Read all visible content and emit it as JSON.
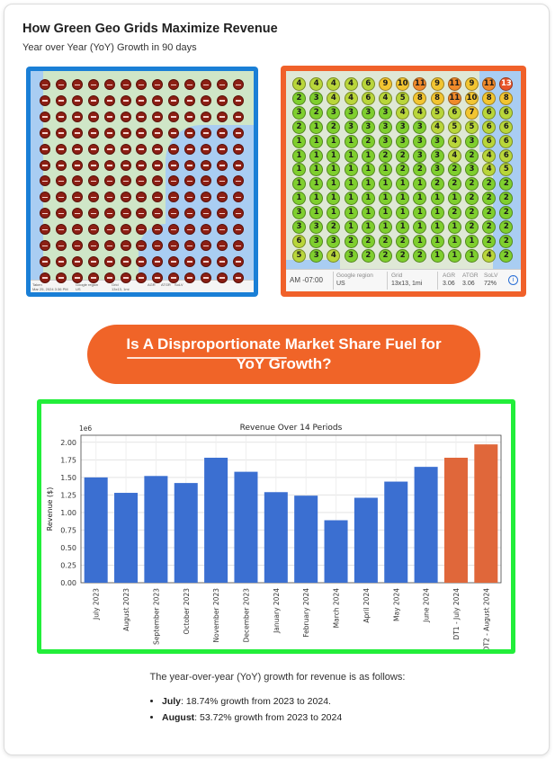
{
  "header": {
    "title": "How Green Geo Grids Maximize Revenue",
    "subtitle": "Year over Year (YoY) Growth in 90 days"
  },
  "grid_left": {
    "marker_label": "20+",
    "footer": [
      "Taken",
      "Mar 25, 2024 3:36 PM",
      "Google region",
      "US",
      "Grid",
      "13x13, 1mi",
      "AGR",
      "ATGR",
      "SoLV"
    ]
  },
  "grid_right": {
    "ranks": [
      [
        4,
        4,
        4,
        4,
        6,
        9,
        10,
        11,
        9,
        11,
        9,
        11,
        13
      ],
      [
        2,
        3,
        4,
        4,
        6,
        4,
        5,
        8,
        8,
        11,
        10,
        8,
        8
      ],
      [
        3,
        2,
        3,
        3,
        3,
        3,
        4,
        4,
        5,
        6,
        7,
        6,
        6
      ],
      [
        2,
        1,
        2,
        3,
        3,
        3,
        3,
        3,
        4,
        5,
        5,
        6,
        6
      ],
      [
        1,
        1,
        1,
        1,
        2,
        3,
        3,
        3,
        3,
        4,
        3,
        6,
        6
      ],
      [
        1,
        1,
        1,
        1,
        1,
        2,
        2,
        3,
        3,
        4,
        2,
        4,
        6
      ],
      [
        1,
        1,
        1,
        1,
        1,
        1,
        2,
        2,
        3,
        2,
        3,
        4,
        5
      ],
      [
        1,
        1,
        1,
        1,
        1,
        1,
        1,
        1,
        2,
        2,
        2,
        2,
        2
      ],
      [
        1,
        1,
        1,
        1,
        1,
        1,
        1,
        1,
        1,
        1,
        2,
        2,
        2
      ],
      [
        3,
        1,
        1,
        1,
        1,
        1,
        1,
        1,
        1,
        2,
        2,
        2,
        2
      ],
      [
        3,
        3,
        2,
        1,
        1,
        1,
        1,
        1,
        1,
        1,
        2,
        2,
        2
      ],
      [
        6,
        3,
        3,
        2,
        2,
        2,
        2,
        1,
        1,
        1,
        1,
        2,
        2
      ],
      [
        5,
        3,
        4,
        3,
        2,
        2,
        2,
        2,
        1,
        1,
        1,
        4,
        2
      ]
    ],
    "footer": {
      "time": "AM -07:00",
      "region_label": "Google region",
      "region_value": "US",
      "grid_label": "Grid",
      "grid_value": "13x13, 1mi",
      "agr_label": "AGR",
      "agr_value": "3.06",
      "atgr_label": "ATGR",
      "atgr_value": "3.06",
      "solv_label": "SoLV",
      "solv_value": "72%"
    }
  },
  "banner": {
    "line1": "Is A Disproportionate Market Share Fuel for",
    "line2": "YoY Growth?"
  },
  "chart_data": {
    "type": "bar",
    "title": "Revenue Over 14 Periods",
    "ylabel": "Revenue ($)",
    "xlabel": "",
    "scale_label": "1e6",
    "ylim": [
      0,
      2.1
    ],
    "yticks": [
      "0.00",
      "0.25",
      "0.50",
      "0.75",
      "1.00",
      "1.25",
      "1.50",
      "1.75",
      "2.00"
    ],
    "categories": [
      "July 2023",
      "August 2023",
      "September 2023",
      "October 2023",
      "November 2023",
      "December 2023",
      "January 2024",
      "February 2024",
      "March 2024",
      "April 2024",
      "May 2024",
      "June 2024",
      "DT1 - July 2024",
      "DT2 - August 2024"
    ],
    "values": [
      1.5,
      1.28,
      1.52,
      1.42,
      1.78,
      1.58,
      1.29,
      1.24,
      0.89,
      1.21,
      1.44,
      1.65,
      1.78,
      1.97
    ],
    "colors": [
      "#3b6fd1",
      "#3b6fd1",
      "#3b6fd1",
      "#3b6fd1",
      "#3b6fd1",
      "#3b6fd1",
      "#3b6fd1",
      "#3b6fd1",
      "#3b6fd1",
      "#3b6fd1",
      "#3b6fd1",
      "#3b6fd1",
      "#e0673a",
      "#e0673a"
    ],
    "grid": true
  },
  "summary": {
    "intro": "The year-over-year (YoY) growth for revenue is as follows:",
    "items": [
      {
        "month": "July",
        "text": ": 18.74% growth from 2023 to 2024."
      },
      {
        "month": "August",
        "text": ": 53.72% growth from 2023 to 2024"
      }
    ]
  }
}
